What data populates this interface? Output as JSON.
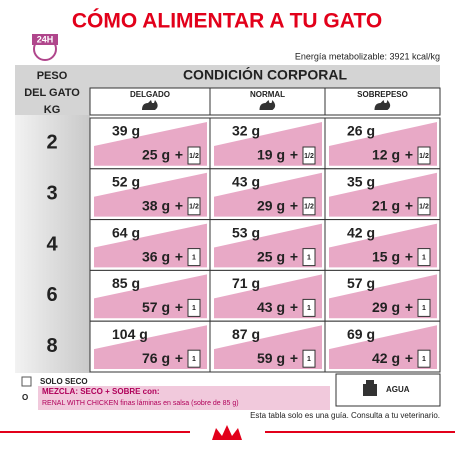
{
  "title": "CÓMO ALIMENTAR A TU GATO",
  "badge": "24H",
  "energy": "Energía metabolizable: 3921 kcal/kg",
  "weight_header": [
    "PESO",
    "DEL GATO",
    "KG"
  ],
  "condition": "CONDICIÓN CORPORAL",
  "columns": [
    "DELGADO",
    "NORMAL",
    "SOBREPESO"
  ],
  "plus": "+",
  "rows": [
    {
      "weight": "2",
      "cells": [
        {
          "dry": "39 g",
          "mix": "25 g",
          "pouch": "1/2"
        },
        {
          "dry": "32 g",
          "mix": "19 g",
          "pouch": "1/2"
        },
        {
          "dry": "26 g",
          "mix": "12 g",
          "pouch": "1/2"
        }
      ]
    },
    {
      "weight": "3",
      "cells": [
        {
          "dry": "52 g",
          "mix": "38 g",
          "pouch": "1/2"
        },
        {
          "dry": "43 g",
          "mix": "29 g",
          "pouch": "1/2"
        },
        {
          "dry": "35 g",
          "mix": "21 g",
          "pouch": "1/2"
        }
      ]
    },
    {
      "weight": "4",
      "cells": [
        {
          "dry": "64 g",
          "mix": "36 g",
          "pouch": "1"
        },
        {
          "dry": "53 g",
          "mix": "25 g",
          "pouch": "1"
        },
        {
          "dry": "42 g",
          "mix": "15 g",
          "pouch": "1"
        }
      ]
    },
    {
      "weight": "6",
      "cells": [
        {
          "dry": "85 g",
          "mix": "57 g",
          "pouch": "1"
        },
        {
          "dry": "71 g",
          "mix": "43 g",
          "pouch": "1"
        },
        {
          "dry": "57 g",
          "mix": "29 g",
          "pouch": "1"
        }
      ]
    },
    {
      "weight": "8",
      "cells": [
        {
          "dry": "104 g",
          "mix": "76 g",
          "pouch": "1"
        },
        {
          "dry": "87 g",
          "mix": "59 g",
          "pouch": "1"
        },
        {
          "dry": "69 g",
          "mix": "42 g",
          "pouch": "1"
        }
      ]
    }
  ],
  "legend": {
    "dry_only": "SOLO SECO",
    "or": "O",
    "mix_title": "MEZCLA: SECO + SOBRE con:",
    "mix_product": "RENAL WITH CHICKEN finas láminas en salsa (sobre de 85 g)",
    "water": "AGUA"
  },
  "footnote": "Esta tabla solo es una guía. Consulta a tu veterinario."
}
